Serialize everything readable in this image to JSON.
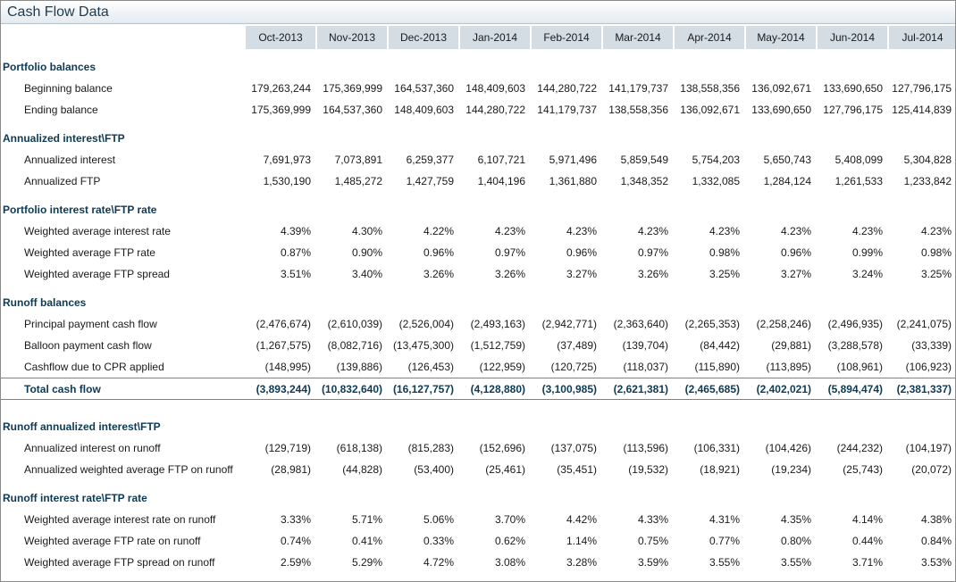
{
  "panel": {
    "title": "Cash Flow Data"
  },
  "months": [
    "Oct-2013",
    "Nov-2013",
    "Dec-2013",
    "Jan-2014",
    "Feb-2014",
    "Mar-2014",
    "Apr-2014",
    "May-2014",
    "Jun-2014",
    "Jul-2014"
  ],
  "sections": [
    {
      "title": "Portfolio balances",
      "rows": [
        {
          "label": "Beginning balance",
          "values": [
            "179,263,244",
            "175,369,999",
            "164,537,360",
            "148,409,603",
            "144,280,722",
            "141,179,737",
            "138,558,356",
            "136,092,671",
            "133,690,650",
            "127,796,175"
          ]
        },
        {
          "label": "Ending balance",
          "values": [
            "175,369,999",
            "164,537,360",
            "148,409,603",
            "144,280,722",
            "141,179,737",
            "138,558,356",
            "136,092,671",
            "133,690,650",
            "127,796,175",
            "125,414,839"
          ]
        }
      ]
    },
    {
      "title": "Annualized interest\\FTP",
      "rows": [
        {
          "label": "Annualized interest",
          "values": [
            "7,691,973",
            "7,073,891",
            "6,259,377",
            "6,107,721",
            "5,971,496",
            "5,859,549",
            "5,754,203",
            "5,650,743",
            "5,408,099",
            "5,304,828"
          ]
        },
        {
          "label": "Annualized FTP",
          "values": [
            "1,530,190",
            "1,485,272",
            "1,427,759",
            "1,404,196",
            "1,361,880",
            "1,348,352",
            "1,332,085",
            "1,284,124",
            "1,261,533",
            "1,233,842"
          ]
        }
      ]
    },
    {
      "title": "Portfolio interest rate\\FTP rate",
      "rows": [
        {
          "label": "Weighted average interest rate",
          "values": [
            "4.39%",
            "4.30%",
            "4.22%",
            "4.23%",
            "4.23%",
            "4.23%",
            "4.23%",
            "4.23%",
            "4.23%",
            "4.23%"
          ]
        },
        {
          "label": "Weighted average FTP rate",
          "values": [
            "0.87%",
            "0.90%",
            "0.96%",
            "0.97%",
            "0.96%",
            "0.97%",
            "0.98%",
            "0.96%",
            "0.99%",
            "0.98%"
          ]
        },
        {
          "label": "Weighted average FTP spread",
          "values": [
            "3.51%",
            "3.40%",
            "3.26%",
            "3.26%",
            "3.27%",
            "3.26%",
            "3.25%",
            "3.27%",
            "3.24%",
            "3.25%"
          ]
        }
      ]
    },
    {
      "title": "Runoff balances",
      "rows": [
        {
          "label": "Principal payment cash flow",
          "values": [
            "(2,476,674)",
            "(2,610,039)",
            "(2,526,004)",
            "(2,493,163)",
            "(2,942,771)",
            "(2,363,640)",
            "(2,265,353)",
            "(2,258,246)",
            "(2,496,935)",
            "(2,241,075)"
          ]
        },
        {
          "label": "Balloon payment cash flow",
          "values": [
            "(1,267,575)",
            "(8,082,716)",
            "(13,475,300)",
            "(1,512,759)",
            "(37,489)",
            "(139,704)",
            "(84,442)",
            "(29,881)",
            "(3,288,578)",
            "(33,339)"
          ]
        },
        {
          "label": "Cashflow due to CPR applied",
          "values": [
            "(148,995)",
            "(139,886)",
            "(126,453)",
            "(122,959)",
            "(120,725)",
            "(118,037)",
            "(115,890)",
            "(113,895)",
            "(108,961)",
            "(106,923)"
          ]
        }
      ],
      "total": {
        "label": "Total cash flow",
        "values": [
          "(3,893,244)",
          "(10,832,640)",
          "(16,127,757)",
          "(4,128,880)",
          "(3,100,985)",
          "(2,621,381)",
          "(2,465,685)",
          "(2,402,021)",
          "(5,894,474)",
          "(2,381,337)"
        ]
      }
    },
    {
      "title": "Runoff annualized interest\\FTP",
      "rows": [
        {
          "label": "Annualized interest on runoff",
          "values": [
            "(129,719)",
            "(618,138)",
            "(815,283)",
            "(152,696)",
            "(137,075)",
            "(113,596)",
            "(106,331)",
            "(104,426)",
            "(244,232)",
            "(104,197)"
          ]
        },
        {
          "label": "Annualized weighted average FTP on runoff",
          "values": [
            "(28,981)",
            "(44,828)",
            "(53,400)",
            "(25,461)",
            "(35,451)",
            "(19,532)",
            "(18,921)",
            "(19,234)",
            "(25,743)",
            "(20,072)"
          ]
        }
      ]
    },
    {
      "title": "Runoff interest rate\\FTP rate",
      "rows": [
        {
          "label": "Weighted average interest rate on runoff",
          "values": [
            "3.33%",
            "5.71%",
            "5.06%",
            "3.70%",
            "4.42%",
            "4.33%",
            "4.31%",
            "4.35%",
            "4.14%",
            "4.38%"
          ]
        },
        {
          "label": "Weighted average FTP rate on runoff",
          "values": [
            "0.74%",
            "0.41%",
            "0.33%",
            "0.62%",
            "1.14%",
            "0.75%",
            "0.77%",
            "0.80%",
            "0.44%",
            "0.84%"
          ]
        },
        {
          "label": "Weighted average FTP spread on runoff",
          "values": [
            "2.59%",
            "5.29%",
            "4.72%",
            "3.08%",
            "3.28%",
            "3.59%",
            "3.55%",
            "3.55%",
            "3.71%",
            "3.53%"
          ]
        }
      ]
    }
  ]
}
